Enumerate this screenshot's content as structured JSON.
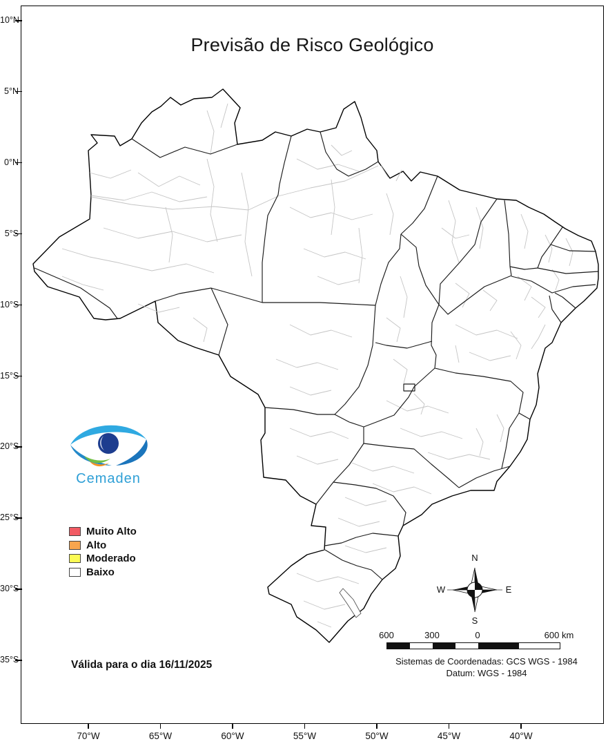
{
  "title": "Previsão de Risco Geológico",
  "branding": {
    "name": "Cemaden"
  },
  "legend": {
    "items": [
      {
        "label": "Muito Alto",
        "color": "#F25B64"
      },
      {
        "label": "Alto",
        "color": "#F7A54E"
      },
      {
        "label": "Moderado",
        "color": "#FBFB54"
      },
      {
        "label": "Baixo",
        "color": "#FFFFFF"
      }
    ]
  },
  "validity_note": "Válida para o dia 16/11/2025",
  "axes": {
    "lat_ticks": [
      "10°N",
      "5°N",
      "0°N",
      "5°S",
      "10°S",
      "15°S",
      "20°S",
      "25°S",
      "30°S",
      "35°S"
    ],
    "lon_ticks": [
      "70°W",
      "65°W",
      "60°W",
      "55°W",
      "50°W",
      "45°W",
      "40°W"
    ]
  },
  "compass": {
    "north": "N",
    "south": "S",
    "east": "E",
    "west": "W"
  },
  "scalebar": {
    "labels": [
      "600",
      "300",
      "0",
      "600 km"
    ]
  },
  "crs": {
    "line1": "Sistemas de Coordenadas: GCS WGS - 1984",
    "line2": "Datum: WGS - 1984"
  }
}
